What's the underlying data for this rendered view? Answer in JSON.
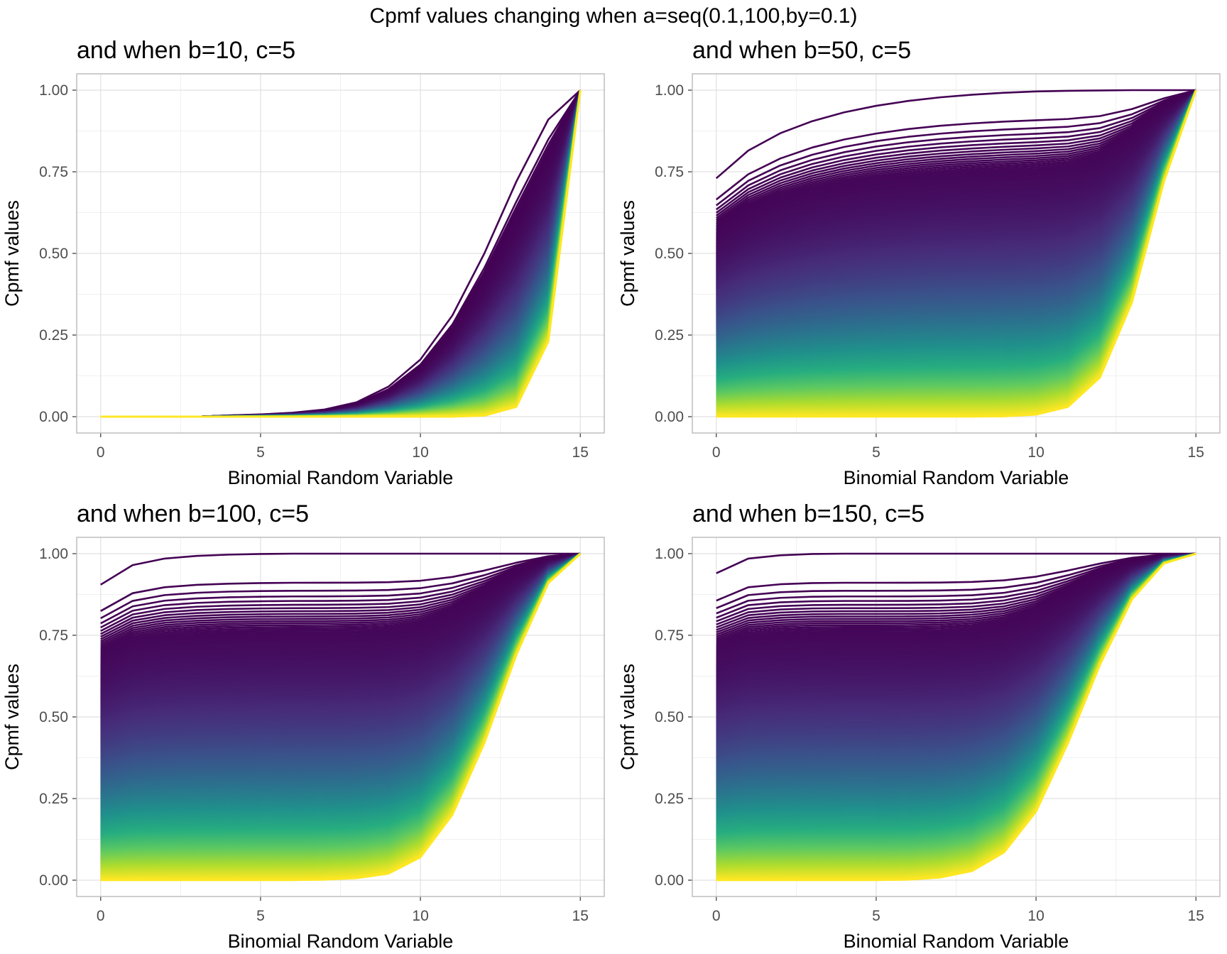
{
  "figure": {
    "title": "Cpmf values changing when a=seq(0.1,100,by=0.1)"
  },
  "colors": {
    "viridis": [
      "#440154",
      "#472d7b",
      "#3b528b",
      "#2c728e",
      "#21918c",
      "#28ae80",
      "#5ec962",
      "#addc30",
      "#fde725"
    ],
    "grid_major": "#e0e0e0",
    "grid_minor": "#f0f0f0",
    "panel_border": "#bdbdbd",
    "tick_text": "#4d4d4d"
  },
  "chart_data": [
    {
      "type": "line",
      "title": "and when b=10, c=5",
      "xlabel": "Binomial Random Variable",
      "ylabel": "Cpmf values",
      "x": [
        0,
        1,
        2,
        3,
        4,
        5,
        6,
        7,
        8,
        9,
        10,
        11,
        12,
        13,
        14,
        15
      ],
      "xlim": [
        0,
        15
      ],
      "ylim": [
        0,
        1
      ],
      "xticks": [
        "0",
        "5",
        "10",
        "15"
      ],
      "yticks": [
        "0.00",
        "0.25",
        "0.50",
        "0.75",
        "1.00"
      ],
      "series_param": "a",
      "series_range": [
        0.1,
        100
      ],
      "series_step": 0.1,
      "grid": true,
      "legend": "none",
      "series": [
        {
          "a": 0.1,
          "values": [
            0.0,
            0.0,
            0.0,
            0.0,
            0.004,
            0.007,
            0.012,
            0.022,
            0.044,
            0.092,
            0.175,
            0.31,
            0.5,
            0.72,
            0.91,
            1.0
          ]
        },
        {
          "a": 100,
          "values": [
            0.0,
            0.0,
            0.0,
            0.0,
            0.0,
            0.0,
            0.0,
            0.0,
            0.0,
            0.0,
            0.0,
            0.0,
            0.003,
            0.03,
            0.23,
            1.0
          ]
        }
      ]
    },
    {
      "type": "line",
      "title": "and when b=50, c=5",
      "xlabel": "Binomial Random Variable",
      "ylabel": "Cpmf values",
      "x": [
        0,
        1,
        2,
        3,
        4,
        5,
        6,
        7,
        8,
        9,
        10,
        11,
        12,
        13,
        14,
        15
      ],
      "xlim": [
        0,
        15
      ],
      "ylim": [
        0,
        1
      ],
      "xticks": [
        "0",
        "5",
        "10",
        "15"
      ],
      "yticks": [
        "0.00",
        "0.25",
        "0.50",
        "0.75",
        "1.00"
      ],
      "series_param": "a",
      "series_range": [
        0.1,
        100
      ],
      "series_step": 0.1,
      "grid": true,
      "legend": "none",
      "series": [
        {
          "a": 0.1,
          "values": [
            0.73,
            0.815,
            0.868,
            0.905,
            0.932,
            0.952,
            0.967,
            0.978,
            0.986,
            0.992,
            0.996,
            0.998,
            0.999,
            1.0,
            1.0,
            1.0
          ]
        },
        {
          "a": 100,
          "values": [
            0.0,
            0.0,
            0.0,
            0.0,
            0.0,
            0.0,
            0.0,
            0.0,
            0.0,
            0.001,
            0.006,
            0.03,
            0.12,
            0.35,
            0.72,
            1.0
          ]
        }
      ]
    },
    {
      "type": "line",
      "title": "and when b=100, c=5",
      "xlabel": "Binomial Random Variable",
      "ylabel": "Cpmf values",
      "x": [
        0,
        1,
        2,
        3,
        4,
        5,
        6,
        7,
        8,
        9,
        10,
        11,
        12,
        13,
        14,
        15
      ],
      "xlim": [
        0,
        15
      ],
      "ylim": [
        0,
        1
      ],
      "xticks": [
        "0",
        "5",
        "10",
        "15"
      ],
      "yticks": [
        "0.00",
        "0.25",
        "0.50",
        "0.75",
        "1.00"
      ],
      "series_param": "a",
      "series_range": [
        0.1,
        100
      ],
      "series_step": 0.1,
      "grid": true,
      "legend": "none",
      "series": [
        {
          "a": 0.1,
          "values": [
            0.905,
            0.965,
            0.985,
            0.993,
            0.997,
            0.999,
            1.0,
            1.0,
            1.0,
            1.0,
            1.0,
            1.0,
            1.0,
            1.0,
            1.0,
            1.0
          ]
        },
        {
          "a": 100,
          "values": [
            0.0,
            0.0,
            0.0,
            0.0,
            0.0,
            0.0,
            0.0,
            0.0015,
            0.006,
            0.02,
            0.07,
            0.2,
            0.42,
            0.69,
            0.91,
            1.0
          ]
        }
      ]
    },
    {
      "type": "line",
      "title": "and when b=150, c=5",
      "xlabel": "Binomial Random Variable",
      "ylabel": "Cpmf values",
      "x": [
        0,
        1,
        2,
        3,
        4,
        5,
        6,
        7,
        8,
        9,
        10,
        11,
        12,
        13,
        14,
        15
      ],
      "xlim": [
        0,
        15
      ],
      "ylim": [
        0,
        1
      ],
      "xticks": [
        "0",
        "5",
        "10",
        "15"
      ],
      "yticks": [
        "0.00",
        "0.25",
        "0.50",
        "0.75",
        "1.00"
      ],
      "series_param": "a",
      "series_range": [
        0.1,
        100
      ],
      "series_step": 0.1,
      "grid": true,
      "legend": "none",
      "series": [
        {
          "a": 0.1,
          "values": [
            0.94,
            0.985,
            0.995,
            0.999,
            1.0,
            1.0,
            1.0,
            1.0,
            1.0,
            1.0,
            1.0,
            1.0,
            1.0,
            1.0,
            1.0,
            1.0
          ]
        },
        {
          "a": 100,
          "values": [
            0.0,
            0.0,
            0.0,
            0.0,
            0.0,
            0.0,
            0.0015,
            0.008,
            0.028,
            0.085,
            0.21,
            0.42,
            0.66,
            0.86,
            0.97,
            1.0
          ]
        }
      ]
    }
  ]
}
